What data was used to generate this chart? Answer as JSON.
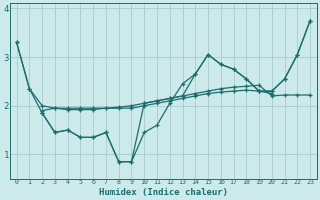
{
  "xlabel": "Humidex (Indice chaleur)",
  "bg_color": "#cceaea",
  "grid_color": "#aacccc",
  "line_color": "#1a6e6e",
  "xlim": [
    -0.5,
    23.5
  ],
  "ylim": [
    0.5,
    4.1
  ],
  "yticks": [
    1,
    2,
    3,
    4
  ],
  "xticks": [
    0,
    1,
    2,
    3,
    4,
    5,
    6,
    7,
    8,
    9,
    10,
    11,
    12,
    13,
    14,
    15,
    16,
    17,
    18,
    19,
    20,
    21,
    22,
    23
  ],
  "line1_x": [
    0,
    1,
    2,
    3,
    4,
    5,
    6,
    7,
    8,
    9,
    10,
    11,
    12,
    13,
    14,
    15,
    16,
    17,
    18,
    19,
    20
  ],
  "line1_y": [
    3.3,
    2.35,
    2.0,
    1.95,
    1.95,
    1.95,
    1.95,
    1.95,
    1.95,
    1.95,
    2.0,
    2.05,
    2.1,
    2.15,
    2.2,
    2.25,
    2.28,
    2.3,
    2.32,
    2.3,
    2.25
  ],
  "line2_x": [
    0,
    1,
    2,
    3,
    4,
    5,
    6,
    7,
    8,
    9,
    10,
    11,
    12,
    13,
    14,
    15,
    16,
    17,
    18,
    19,
    20,
    21,
    22,
    23
  ],
  "line2_y": [
    3.3,
    2.35,
    1.85,
    1.45,
    1.5,
    1.35,
    1.35,
    1.45,
    0.85,
    0.85,
    1.45,
    1.6,
    2.05,
    2.45,
    2.65,
    3.05,
    2.85,
    2.75,
    2.55,
    2.3,
    2.3,
    2.55,
    3.05,
    3.75
  ],
  "line3_x": [
    2,
    3,
    4,
    5,
    6,
    7,
    8,
    9,
    10,
    11,
    12,
    13,
    14,
    15,
    16,
    17,
    18,
    19,
    20,
    21,
    22,
    23
  ],
  "line3_y": [
    1.9,
    1.95,
    1.92,
    1.92,
    1.92,
    1.95,
    1.97,
    2.0,
    2.05,
    2.1,
    2.15,
    2.2,
    2.25,
    2.3,
    2.35,
    2.38,
    2.4,
    2.42,
    2.2,
    2.22,
    2.22,
    2.22
  ],
  "line4_x": [
    2,
    3,
    4,
    5,
    6,
    7,
    8,
    9,
    10,
    11,
    12,
    13,
    14,
    15,
    16,
    17,
    18,
    19,
    20,
    21,
    22,
    23
  ],
  "line4_y": [
    1.85,
    1.45,
    1.5,
    1.35,
    1.35,
    1.45,
    0.85,
    0.85,
    2.05,
    2.1,
    2.15,
    2.2,
    2.65,
    3.05,
    2.85,
    2.75,
    2.55,
    2.3,
    2.3,
    2.55,
    3.05,
    3.75
  ]
}
